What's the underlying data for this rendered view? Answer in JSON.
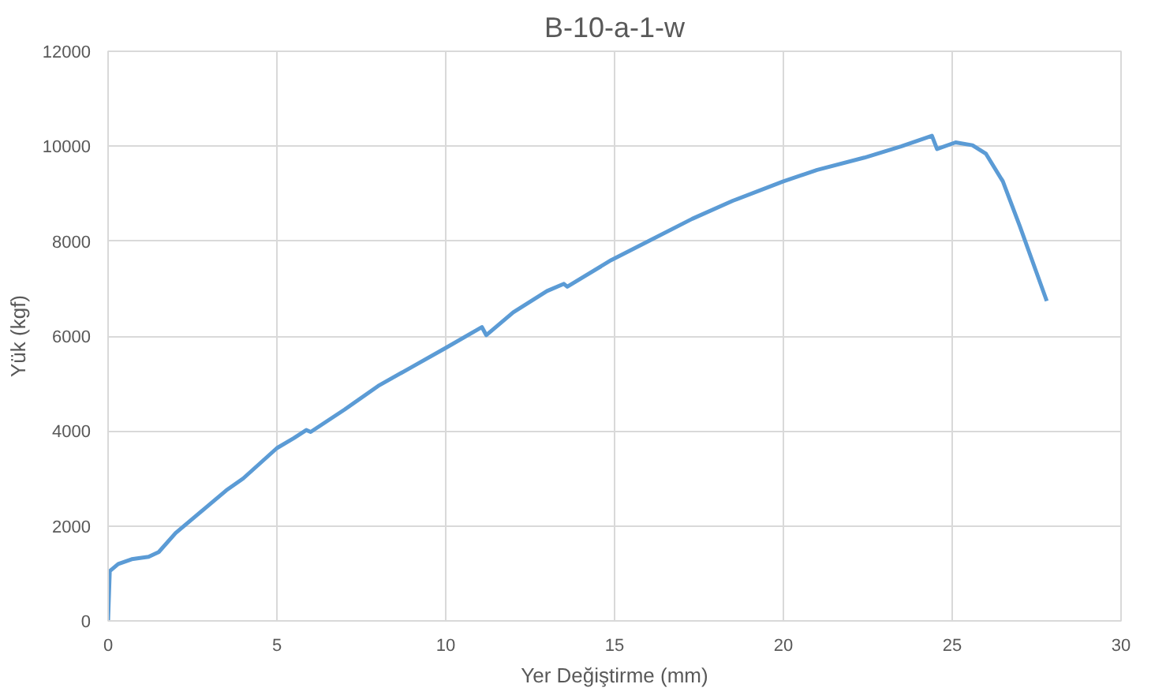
{
  "chart_data": {
    "type": "line",
    "title": "B-10-a-1-w",
    "xlabel": "Yer Değiştirme (mm)",
    "ylabel": "Yük (kgf)",
    "x": [
      0,
      0.05,
      0.3,
      0.7,
      1.2,
      1.5,
      2,
      2.5,
      3,
      3.5,
      4,
      5,
      5.5,
      5.87,
      6.0,
      7,
      8,
      9,
      10,
      11.07,
      11.2,
      12,
      13,
      13.5,
      13.6,
      14.9,
      16,
      17.3,
      18.5,
      20,
      21,
      22.4,
      23.5,
      24.4,
      24.55,
      25.1,
      25.6,
      26.0,
      26.5,
      27.0,
      27.8
    ],
    "series": [
      {
        "color": "#5b9bd5",
        "values": [
          0,
          1050,
          1200,
          1300,
          1350,
          1450,
          1850,
          2150,
          2450,
          2750,
          3000,
          3640,
          3850,
          4020,
          3980,
          4450,
          4950,
          5350,
          5750,
          6190,
          6020,
          6500,
          6950,
          7100,
          7040,
          7600,
          8000,
          8470,
          8850,
          9260,
          9500,
          9760,
          10000,
          10220,
          9940,
          10080,
          10020,
          9840,
          9260,
          8320,
          6740
        ]
      }
    ],
    "xlim": [
      0,
      30
    ],
    "xticks": [
      0,
      5,
      10,
      15,
      20,
      25,
      30
    ],
    "ylim": [
      0,
      12000
    ],
    "yticks": [
      0,
      2000,
      4000,
      6000,
      8000,
      10000,
      12000
    ],
    "grid": true,
    "marker": "none",
    "line_style": "solid"
  }
}
